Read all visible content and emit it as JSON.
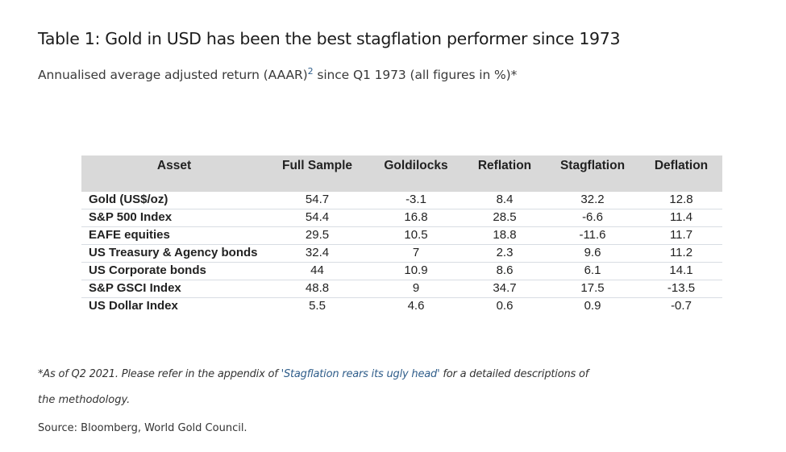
{
  "title": "Table 1: Gold in USD has been the best stagflation performer since 1973",
  "subtitle": {
    "before": "Annualised average adjusted return (AAAR)",
    "superscript": "2",
    "after": " since Q1 1973 (all figures in %)*"
  },
  "table": {
    "headers": [
      "Asset",
      "Full Sample",
      "Goldilocks",
      "Reflation",
      "Stagflation",
      "Deflation"
    ],
    "rows": [
      {
        "asset": "Gold (US$/oz)",
        "values": [
          "54.7",
          "-3.1",
          "8.4",
          "32.2",
          "12.8"
        ]
      },
      {
        "asset": "S&P 500 Index",
        "values": [
          "54.4",
          "16.8",
          "28.5",
          "-6.6",
          "11.4"
        ]
      },
      {
        "asset": "EAFE equities",
        "values": [
          "29.5",
          "10.5",
          "18.8",
          "-11.6",
          "11.7"
        ]
      },
      {
        "asset": "US Treasury & Agency bonds",
        "values": [
          "32.4",
          "7",
          "2.3",
          "9.6",
          "11.2"
        ]
      },
      {
        "asset": "US Corporate bonds",
        "values": [
          "44",
          "10.9",
          "8.6",
          "6.1",
          "14.1"
        ]
      },
      {
        "asset": "S&P GSCI Index",
        "values": [
          "48.8",
          "9",
          "34.7",
          "17.5",
          "-13.5"
        ]
      },
      {
        "asset": "US Dollar Index",
        "values": [
          "5.5",
          "4.6",
          "0.6",
          "0.9",
          "-0.7"
        ]
      }
    ]
  },
  "footnote": {
    "before": "*As of Q2 2021. Please refer in the appendix of ",
    "link": "'Stagflation rears its ugly head'",
    "after": " for a detailed descriptions of",
    "line2": "the methodology."
  },
  "source": "Source: Bloomberg, World Gold Council.",
  "colors": {
    "header_bg": "#d9d9d9",
    "link": "#2f5d8a",
    "row_divider": "#d8dde3"
  }
}
